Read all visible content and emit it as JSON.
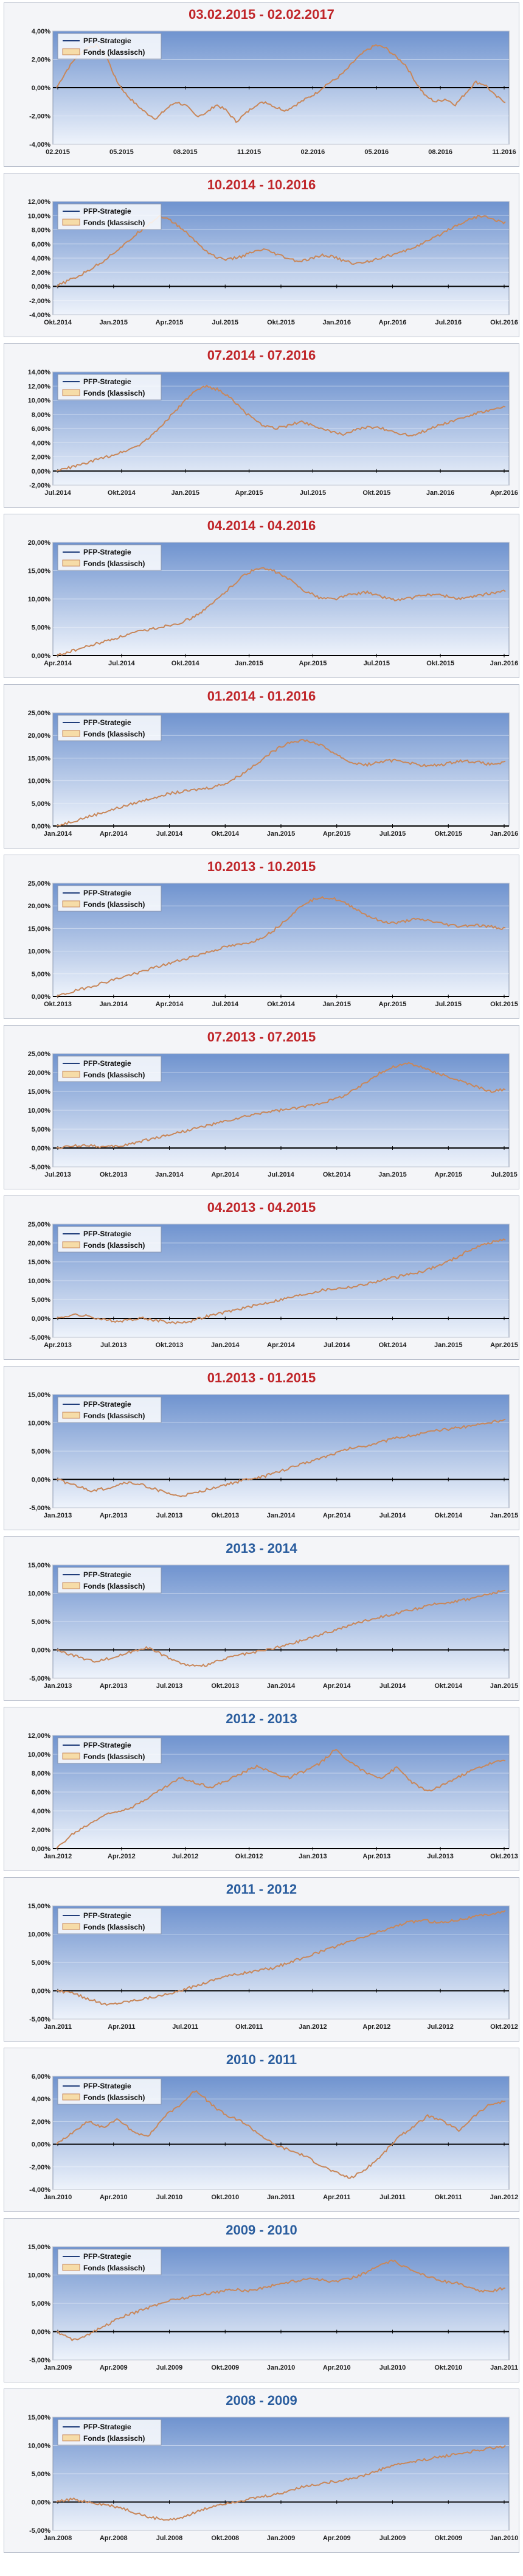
{
  "colors": {
    "title_red": "#c0262a",
    "title_blue": "#2a5d9e",
    "strategy_line": "#1f3d7a",
    "fund_line": "#c8875a",
    "plot_bg_top": "#6f93cf",
    "plot_bg_bottom": "#eef3fb",
    "zero_line": "#000000"
  },
  "legend": {
    "strategy": "PFP-Strategie",
    "fund": "Fonds (klassisch)"
  },
  "chart_data": [
    {
      "type": "line",
      "title": "03.02.2015 - 02.02.2017",
      "title_color": "red",
      "ylim": [
        -4,
        4
      ],
      "yticks": [
        "4,00%",
        "2,00%",
        "0,00%",
        "-2,00%",
        "-4,00%"
      ],
      "xticks": [
        "02.2015",
        "05.2015",
        "08.2015",
        "11.2015",
        "02.2016",
        "05.2016",
        "08.2016",
        "11.2016"
      ],
      "x_span": 8,
      "series": [
        {
          "name": "Fonds (klassisch)",
          "values": [
            0,
            1.2,
            2.2,
            2.8,
            3.0,
            2.2,
            0.5,
            -0.5,
            -1.2,
            -1.8,
            -2.2,
            -1.5,
            -1.0,
            -1.3,
            -2.0,
            -1.8,
            -1.2,
            -1.6,
            -2.4,
            -1.8,
            -1.2,
            -1.0,
            -1.4,
            -1.6,
            -1.2,
            -0.8,
            -0.4,
            0.2,
            0.6,
            1.2,
            2.0,
            2.6,
            3.0,
            2.8,
            2.2,
            1.6,
            0.4,
            -0.6,
            -1.0,
            -0.8,
            -1.2,
            -0.4,
            0.4,
            0.2,
            -0.6,
            -1.0
          ]
        }
      ]
    },
    {
      "type": "line",
      "title": "10.2014 - 10.2016",
      "title_color": "red",
      "ylim": [
        -4,
        12
      ],
      "yticks": [
        "12,00%",
        "10,00%",
        "8,00%",
        "6,00%",
        "4,00%",
        "2,00%",
        "0,00%",
        "-2,00%",
        "-4,00%"
      ],
      "xticks": [
        "Okt.2014",
        "Jan.2015",
        "Apr.2015",
        "Jul.2015",
        "Okt.2015",
        "Jan.2016",
        "Apr.2016",
        "Jul.2016",
        "Okt.2016"
      ],
      "x_span": 8,
      "series": [
        {
          "name": "Fonds (klassisch)",
          "values": [
            0,
            0.8,
            1.5,
            2.5,
            3.5,
            4.8,
            6.0,
            7.5,
            8.8,
            10.0,
            9.2,
            8.0,
            6.5,
            5.0,
            4.0,
            3.8,
            4.2,
            4.8,
            5.2,
            4.6,
            4.0,
            3.5,
            3.8,
            4.4,
            4.2,
            3.6,
            3.2,
            3.5,
            4.0,
            4.4,
            4.8,
            5.5,
            6.2,
            7.0,
            8.0,
            8.8,
            9.6,
            10.0,
            9.4,
            9.0
          ]
        }
      ]
    },
    {
      "type": "line",
      "title": "07.2014 - 07.2016",
      "title_color": "red",
      "ylim": [
        -2,
        14
      ],
      "yticks": [
        "14,00%",
        "12,00%",
        "10,00%",
        "8,00%",
        "6,00%",
        "4,00%",
        "2,00%",
        "0,00%",
        "-2,00%"
      ],
      "xticks": [
        "Jul.2014",
        "Okt.2014",
        "Jan.2015",
        "Apr.2015",
        "Jul.2015",
        "Okt.2015",
        "Jan.2016",
        "Apr.2016"
      ],
      "x_span": 8,
      "series": [
        {
          "name": "Fonds (klassisch)",
          "values": [
            0,
            0.5,
            1.0,
            1.6,
            2.2,
            2.8,
            3.6,
            5.0,
            7.0,
            9.0,
            11.0,
            12.0,
            11.4,
            10.0,
            8.0,
            6.6,
            6.0,
            6.4,
            7.0,
            6.4,
            5.6,
            5.2,
            5.8,
            6.2,
            6.0,
            5.4,
            5.0,
            5.6,
            6.4,
            7.0,
            7.6,
            8.2,
            8.6,
            9.0
          ]
        }
      ]
    },
    {
      "type": "line",
      "title": "04.2014 - 04.2016",
      "title_color": "red",
      "ylim": [
        0,
        20
      ],
      "yticks": [
        "20,00%",
        "15,00%",
        "10,00%",
        "5,00%",
        "0,00%"
      ],
      "xticks": [
        "Apr.2014",
        "Jul.2014",
        "Okt.2014",
        "Jan.2015",
        "Apr.2015",
        "Jul.2015",
        "Okt.2015",
        "Jan.2016"
      ],
      "x_span": 8,
      "series": [
        {
          "name": "Fonds (klassisch)",
          "values": [
            0,
            0.8,
            1.6,
            2.4,
            3.2,
            4.0,
            4.6,
            5.2,
            5.8,
            7.0,
            9.0,
            11.5,
            14.0,
            15.5,
            15.0,
            13.5,
            11.5,
            10.2,
            10.0,
            10.8,
            11.2,
            10.4,
            9.8,
            10.2,
            10.8,
            10.6,
            10.0,
            10.4,
            11.0,
            11.4
          ]
        }
      ]
    },
    {
      "type": "line",
      "title": "01.2014 - 01.2016",
      "title_color": "red",
      "ylim": [
        0,
        25
      ],
      "yticks": [
        "25,00%",
        "20,00%",
        "15,00%",
        "10,00%",
        "5,00%",
        "0,00%"
      ],
      "xticks": [
        "Jan.2014",
        "Apr.2014",
        "Jul.2014",
        "Okt.2014",
        "Jan.2015",
        "Apr.2015",
        "Jul.2015",
        "Okt.2015",
        "Jan.2016"
      ],
      "x_span": 8,
      "series": [
        {
          "name": "Fonds (klassisch)",
          "values": [
            0,
            1.0,
            2.0,
            3.0,
            4.0,
            5.0,
            6.0,
            7.0,
            7.5,
            8.0,
            8.5,
            9.5,
            11.5,
            14.0,
            16.5,
            18.5,
            19.0,
            18.0,
            16.0,
            14.0,
            13.5,
            14.2,
            14.6,
            13.8,
            13.2,
            13.6,
            14.4,
            14.2,
            13.6,
            14.0
          ]
        }
      ]
    },
    {
      "type": "line",
      "title": "10.2013 - 10.2015",
      "title_color": "red",
      "ylim": [
        0,
        25
      ],
      "yticks": [
        "25,00%",
        "20,00%",
        "15,00%",
        "10,00%",
        "5,00%",
        "0,00%"
      ],
      "xticks": [
        "Okt.2013",
        "Jan.2014",
        "Apr.2014",
        "Jul.2014",
        "Okt.2014",
        "Jan.2015",
        "Apr.2015",
        "Jul.2015",
        "Okt.2015"
      ],
      "x_span": 8,
      "series": [
        {
          "name": "Fonds (klassisch)",
          "values": [
            0,
            1.0,
            2.0,
            3.0,
            4.0,
            5.0,
            6.0,
            7.0,
            8.0,
            9.0,
            10.0,
            11.0,
            11.5,
            12.5,
            14.5,
            17.5,
            20.5,
            22.0,
            21.5,
            20.0,
            18.0,
            16.5,
            16.2,
            17.0,
            16.8,
            16.0,
            15.5,
            15.8,
            15.4,
            15.0
          ]
        }
      ]
    },
    {
      "type": "line",
      "title": "07.2013 - 07.2015",
      "title_color": "red",
      "ylim": [
        -5,
        25
      ],
      "yticks": [
        "25,00%",
        "20,00%",
        "15,00%",
        "10,00%",
        "5,00%",
        "0,00%",
        "-5,00%"
      ],
      "xticks": [
        "Jul.2013",
        "Okt.2013",
        "Jan.2014",
        "Apr.2014",
        "Jul.2014",
        "Okt.2014",
        "Jan.2015",
        "Apr.2015",
        "Jul.2015"
      ],
      "x_span": 8,
      "series": [
        {
          "name": "Fonds (klassisch)",
          "values": [
            0,
            0.5,
            0.8,
            0.2,
            0.5,
            1.5,
            2.5,
            3.5,
            4.5,
            5.5,
            6.5,
            7.5,
            8.5,
            9.5,
            10.0,
            10.5,
            11.5,
            12.5,
            14.0,
            16.5,
            19.5,
            21.5,
            22.5,
            21.0,
            19.5,
            18.0,
            16.5,
            15.0,
            15.5
          ]
        }
      ]
    },
    {
      "type": "line",
      "title": "04.2013 - 04.2015",
      "title_color": "red",
      "ylim": [
        -5,
        25
      ],
      "yticks": [
        "25,00%",
        "20,00%",
        "15,00%",
        "10,00%",
        "5,00%",
        "0,00%",
        "-5,00%"
      ],
      "xticks": [
        "Apr.2013",
        "Jul.2013",
        "Okt.2013",
        "Jan.2014",
        "Apr.2014",
        "Jul.2014",
        "Okt.2014",
        "Jan.2015",
        "Apr.2015"
      ],
      "x_span": 8,
      "series": [
        {
          "name": "Fonds (klassisch)",
          "values": [
            0,
            1.0,
            0.5,
            -0.5,
            -0.8,
            0.2,
            -0.5,
            -1.2,
            -0.8,
            0.5,
            1.5,
            2.5,
            3.5,
            4.5,
            5.5,
            6.5,
            7.5,
            8.0,
            8.5,
            9.5,
            10.5,
            11.5,
            12.5,
            14.0,
            16.0,
            18.5,
            20.0,
            21.0
          ]
        }
      ]
    },
    {
      "type": "line",
      "title": "01.2013 - 01.2015",
      "title_color": "red",
      "ylim": [
        -5,
        15
      ],
      "yticks": [
        "15,00%",
        "10,00%",
        "5,00%",
        "0,00%",
        "-5,00%"
      ],
      "xticks": [
        "Jan.2013",
        "Apr.2013",
        "Jul.2013",
        "Okt.2013",
        "Jan.2014",
        "Apr.2014",
        "Jul.2014",
        "Okt.2014",
        "Jan.2015"
      ],
      "x_span": 8,
      "series": [
        {
          "name": "Fonds (klassisch)",
          "values": [
            0,
            -1.0,
            -2.0,
            -1.5,
            -0.5,
            -1.0,
            -2.0,
            -3.0,
            -2.5,
            -1.5,
            -0.8,
            0.0,
            0.5,
            1.5,
            2.5,
            3.5,
            4.5,
            5.5,
            6.0,
            6.8,
            7.5,
            8.0,
            8.6,
            9.0,
            9.5,
            10.0,
            10.5
          ]
        }
      ]
    },
    {
      "type": "line",
      "title": "2013 - 2014",
      "title_color": "blue",
      "ylim": [
        -5,
        15
      ],
      "yticks": [
        "15,00%",
        "10,00%",
        "5,00%",
        "0,00%",
        "-5,00%"
      ],
      "xticks": [
        "Jan.2013",
        "Apr.2013",
        "Jul.2013",
        "Okt.2013",
        "Jan.2014",
        "Apr.2014",
        "Jul.2014",
        "Okt.2014",
        "Jan.2015"
      ],
      "x_span": 8,
      "series": [
        {
          "name": "Fonds (klassisch)",
          "values": [
            0,
            -1.0,
            -2.0,
            -1.5,
            -0.5,
            0.5,
            -1.0,
            -2.5,
            -3.0,
            -2.0,
            -1.0,
            -0.5,
            0.2,
            1.0,
            2.0,
            3.0,
            4.0,
            5.0,
            5.8,
            6.5,
            7.2,
            8.0,
            8.5,
            9.0,
            9.8,
            10.5
          ]
        }
      ]
    },
    {
      "type": "line",
      "title": "2012 - 2013",
      "title_color": "blue",
      "ylim": [
        0,
        12
      ],
      "yticks": [
        "12,00%",
        "10,00%",
        "8,00%",
        "6,00%",
        "4,00%",
        "2,00%",
        "0,00%"
      ],
      "xticks": [
        "Jan.2012",
        "Apr.2012",
        "Jul.2012",
        "Okt.2012",
        "Jan.2013",
        "Apr.2013",
        "Jul.2013",
        "Okt.2013"
      ],
      "x_span": 8,
      "series": [
        {
          "name": "Fonds (klassisch)",
          "values": [
            0,
            1.5,
            2.5,
            3.5,
            4.0,
            4.5,
            5.5,
            6.5,
            7.5,
            7.0,
            6.5,
            7.2,
            8.0,
            8.8,
            8.0,
            7.5,
            8.2,
            9.0,
            10.5,
            9.2,
            8.0,
            7.5,
            8.6,
            7.0,
            6.0,
            6.8,
            7.6,
            8.4,
            9.0,
            9.4
          ]
        }
      ]
    },
    {
      "type": "line",
      "title": "2011 - 2012",
      "title_color": "blue",
      "ylim": [
        -5,
        15
      ],
      "yticks": [
        "15,00%",
        "10,00%",
        "5,00%",
        "0,00%",
        "-5,00%"
      ],
      "xticks": [
        "Jan.2011",
        "Apr.2011",
        "Jul.2011",
        "Okt.2011",
        "Jan.2012",
        "Apr.2012",
        "Jul.2012",
        "Okt.2012"
      ],
      "x_span": 8,
      "series": [
        {
          "name": "Fonds (klassisch)",
          "values": [
            0,
            -0.5,
            -1.5,
            -2.5,
            -2.0,
            -1.5,
            -1.0,
            -0.5,
            0.5,
            1.5,
            2.5,
            3.0,
            3.5,
            4.0,
            5.0,
            6.0,
            7.0,
            8.0,
            9.0,
            10.0,
            11.0,
            12.0,
            12.5,
            12.0,
            12.5,
            13.0,
            13.5,
            14.0
          ]
        }
      ]
    },
    {
      "type": "line",
      "title": "2010 - 2011",
      "title_color": "blue",
      "ylim": [
        -4,
        6
      ],
      "yticks": [
        "6,00%",
        "4,00%",
        "2,00%",
        "0,00%",
        "-2,00%",
        "-4,00%"
      ],
      "xticks": [
        "Jan.2010",
        "Apr.2010",
        "Jul.2010",
        "Okt.2010",
        "Jan.2011",
        "Apr.2011",
        "Jul.2011",
        "Okt.2011",
        "Jan.2012"
      ],
      "x_span": 8,
      "series": [
        {
          "name": "Fonds (klassisch)",
          "values": [
            0,
            1.0,
            2.0,
            1.5,
            2.2,
            1.0,
            0.8,
            2.5,
            3.5,
            4.8,
            3.5,
            2.5,
            2.0,
            1.0,
            0.0,
            -0.5,
            -1.0,
            -1.8,
            -2.5,
            -3.0,
            -2.2,
            -1.0,
            0.5,
            1.5,
            2.5,
            2.0,
            1.2,
            2.5,
            3.5,
            3.8
          ]
        }
      ]
    },
    {
      "type": "line",
      "title": "2009 - 2010",
      "title_color": "blue",
      "ylim": [
        -5,
        15
      ],
      "yticks": [
        "15,00%",
        "10,00%",
        "5,00%",
        "0,00%",
        "-5,00%"
      ],
      "xticks": [
        "Jan.2009",
        "Apr.2009",
        "Jul.2009",
        "Okt.2009",
        "Jan.2010",
        "Apr.2010",
        "Jul.2010",
        "Okt.2010",
        "Jan.2011"
      ],
      "x_span": 8,
      "series": [
        {
          "name": "Fonds (klassisch)",
          "values": [
            0,
            -1.5,
            -0.5,
            1.0,
            2.5,
            3.5,
            4.5,
            5.5,
            6.0,
            6.5,
            7.0,
            7.5,
            7.2,
            7.8,
            8.5,
            9.0,
            9.5,
            8.8,
            9.2,
            10.0,
            11.5,
            12.5,
            11.0,
            10.0,
            9.0,
            8.5,
            7.5,
            7.0,
            7.8
          ]
        }
      ]
    },
    {
      "type": "line",
      "title": "2008 - 2009",
      "title_color": "blue",
      "ylim": [
        -5,
        15
      ],
      "yticks": [
        "15,00%",
        "10,00%",
        "5,00%",
        "0,00%",
        "-5,00%"
      ],
      "xticks": [
        "Jan.2008",
        "Apr.2008",
        "Jul.2008",
        "Okt.2008",
        "Jan.2009",
        "Apr.2009",
        "Jul.2009",
        "Okt.2009",
        "Jan.2010"
      ],
      "x_span": 8,
      "series": [
        {
          "name": "Fonds (klassisch)",
          "values": [
            0,
            0.5,
            0.0,
            -0.5,
            -1.0,
            -2.0,
            -2.8,
            -3.2,
            -2.5,
            -1.5,
            -0.5,
            0.0,
            0.5,
            1.0,
            1.5,
            2.5,
            3.0,
            3.5,
            4.0,
            4.5,
            5.5,
            6.5,
            7.0,
            7.5,
            8.0,
            8.5,
            9.0,
            9.5,
            9.8
          ]
        }
      ]
    }
  ]
}
